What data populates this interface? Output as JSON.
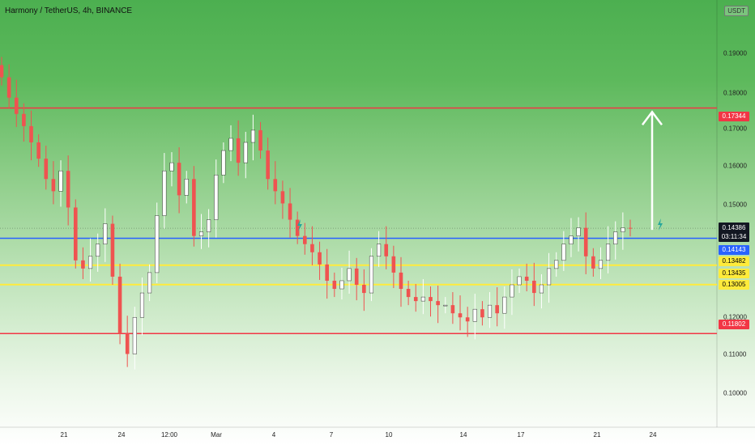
{
  "header": {
    "title": "Harmony / TetherUS, 4h, BINANCE",
    "currency_button": "USDT"
  },
  "price_axis": {
    "tick_labels": [
      "0.19000",
      "0.18000",
      "0.17000",
      "0.16000",
      "0.15000",
      "0.12000",
      "0.11000",
      "0.10000"
    ],
    "last_price": "0.14386",
    "countdown": "03:11:34",
    "tags": [
      {
        "label": "0.17344",
        "color": "red"
      },
      {
        "label": "0.14143",
        "color": "blue"
      },
      {
        "label": "0.13482",
        "color": "yellow"
      },
      {
        "label": "0.13435",
        "color": "yellow"
      },
      {
        "label": "0.13005",
        "color": "yellow"
      },
      {
        "label": "0.11802",
        "color": "red"
      }
    ]
  },
  "time_axis": {
    "labels": [
      "21",
      "24",
      "12:00",
      "Mar",
      "4",
      "7",
      "10",
      "14",
      "17",
      "21",
      "24"
    ]
  },
  "colors": {
    "bull": "#ffffff",
    "bear": "#ef5350",
    "resistance": "#f23645",
    "support_blue": "#2962ff",
    "support_yellow": "#ffeb3b",
    "arrow": "#ffffff",
    "flash": "#26a69a"
  },
  "chart_data": {
    "type": "candlestick",
    "symbol": "Harmony / TetherUS",
    "interval": "4h",
    "exchange": "BINANCE",
    "y_range": [
      0.095,
      0.2
    ],
    "horizontal_levels": [
      {
        "value": 0.17344,
        "color": "red"
      },
      {
        "value": 0.14143,
        "color": "blue"
      },
      {
        "value": 0.13482,
        "color": "yellow"
      },
      {
        "value": 0.13005,
        "color": "yellow"
      },
      {
        "value": 0.11802,
        "color": "red"
      }
    ],
    "target_arrow": {
      "from": 0.1435,
      "to": 0.1725
    },
    "close_path": [
      0.181,
      0.176,
      0.172,
      0.169,
      0.165,
      0.161,
      0.156,
      0.153,
      0.158,
      0.149,
      0.136,
      0.134,
      0.137,
      0.14,
      0.145,
      0.132,
      0.118,
      0.113,
      0.122,
      0.128,
      0.133,
      0.147,
      0.158,
      0.16,
      0.152,
      0.156,
      0.142,
      0.143,
      0.146,
      0.157,
      0.163,
      0.166,
      0.16,
      0.165,
      0.168,
      0.163,
      0.156,
      0.153,
      0.15,
      0.146,
      0.142,
      0.14,
      0.138,
      0.135,
      0.131,
      0.129,
      0.131,
      0.134,
      0.13,
      0.128,
      0.137,
      0.14,
      0.137,
      0.133,
      0.129,
      0.127,
      0.126,
      0.127,
      0.126,
      0.125,
      0.125,
      0.123,
      0.122,
      0.121,
      0.124,
      0.122,
      0.125,
      0.123,
      0.127,
      0.13,
      0.132,
      0.131,
      0.128,
      0.13,
      0.134,
      0.136,
      0.14,
      0.142,
      0.144,
      0.137,
      0.134,
      0.136,
      0.14,
      0.143,
      0.144,
      0.1439
    ]
  }
}
